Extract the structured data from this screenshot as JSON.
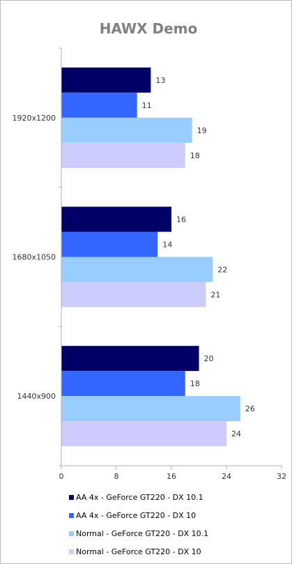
{
  "chart_data": {
    "type": "bar",
    "orientation": "horizontal",
    "title": "HAWX Demo",
    "categories": [
      "1920x1200",
      "1680x1050",
      "1440x900"
    ],
    "series": [
      {
        "name": "AA 4x - GeForce GT220 - DX 10.1",
        "color": "#000066",
        "values": [
          13,
          16,
          20
        ]
      },
      {
        "name": "AA 4x - GeForce GT220 - DX 10",
        "color": "#3366ff",
        "values": [
          11,
          14,
          18
        ]
      },
      {
        "name": "Normal - GeForce GT220 - DX 10.1",
        "color": "#99ccff",
        "values": [
          19,
          22,
          26
        ]
      },
      {
        "name": "Normal - GeForce GT220 - DX 10",
        "color": "#ccccff",
        "values": [
          18,
          21,
          24
        ]
      }
    ],
    "xlim": [
      0,
      32
    ],
    "xticks": [
      0,
      8,
      16,
      24,
      32
    ],
    "grid": false,
    "legend_position": "bottom"
  }
}
